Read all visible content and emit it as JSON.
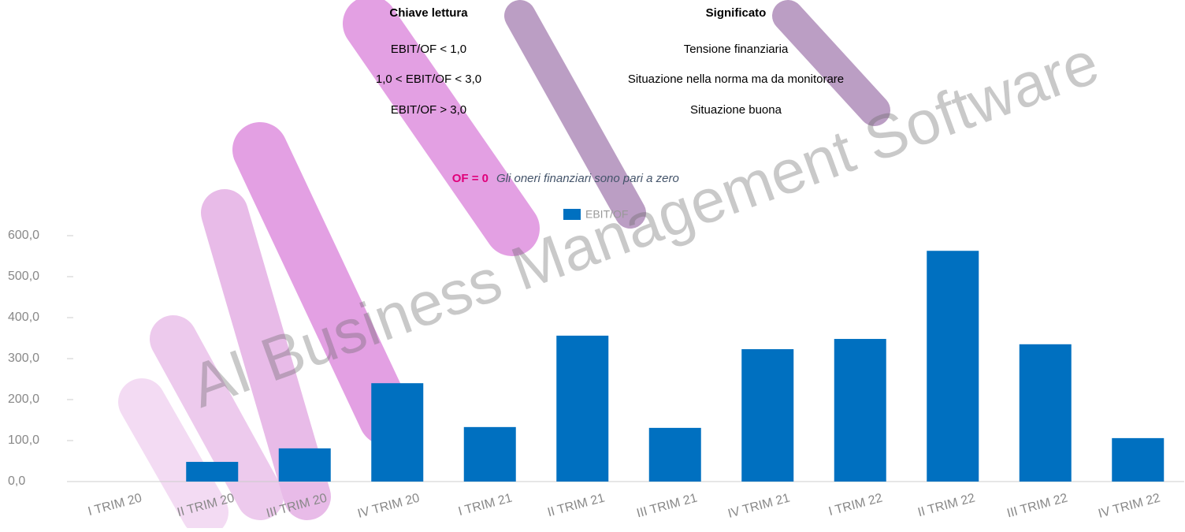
{
  "table": {
    "headers": [
      "Chiave lettura",
      "Significato"
    ],
    "rows": [
      [
        "EBIT/OF < 1,0",
        "Tensione finanziaria"
      ],
      [
        "1,0 < EBIT/OF < 3,0",
        "Situazione nella norma ma da monitorare"
      ],
      [
        "EBIT/OF > 3,0",
        "Situazione buona"
      ]
    ]
  },
  "note": {
    "label": "OF = 0",
    "text": "Gli oneri finanziari sono pari a zero"
  },
  "watermark": {
    "text": "AI Business Management Software"
  },
  "chart_data": {
    "type": "bar",
    "categories": [
      "I TRIM 20",
      "II TRIM 20",
      "III TRIM 20",
      "IV TRIM 20",
      "I TRIM 21",
      "II TRIM 21",
      "III TRIM 21",
      "IV TRIM 21",
      "I TRIM 22",
      "II TRIM 22",
      "III TRIM 22",
      "IV TRIM 22"
    ],
    "series": [
      {
        "name": "EBIT/OF",
        "color": "#0070c0",
        "values": [
          0,
          48,
          81,
          240,
          133,
          356,
          131,
          323,
          348,
          563,
          335,
          106
        ]
      }
    ],
    "ylim": [
      0,
      600
    ],
    "yticks": [
      {
        "value": 0,
        "label": "0,0"
      },
      {
        "value": 100,
        "label": "100,0"
      },
      {
        "value": 200,
        "label": "200,0"
      },
      {
        "value": 300,
        "label": "300,0"
      },
      {
        "value": 400,
        "label": "400,0"
      },
      {
        "value": 500,
        "label": "500,0"
      },
      {
        "value": 600,
        "label": "600,0"
      }
    ],
    "grid": false
  }
}
